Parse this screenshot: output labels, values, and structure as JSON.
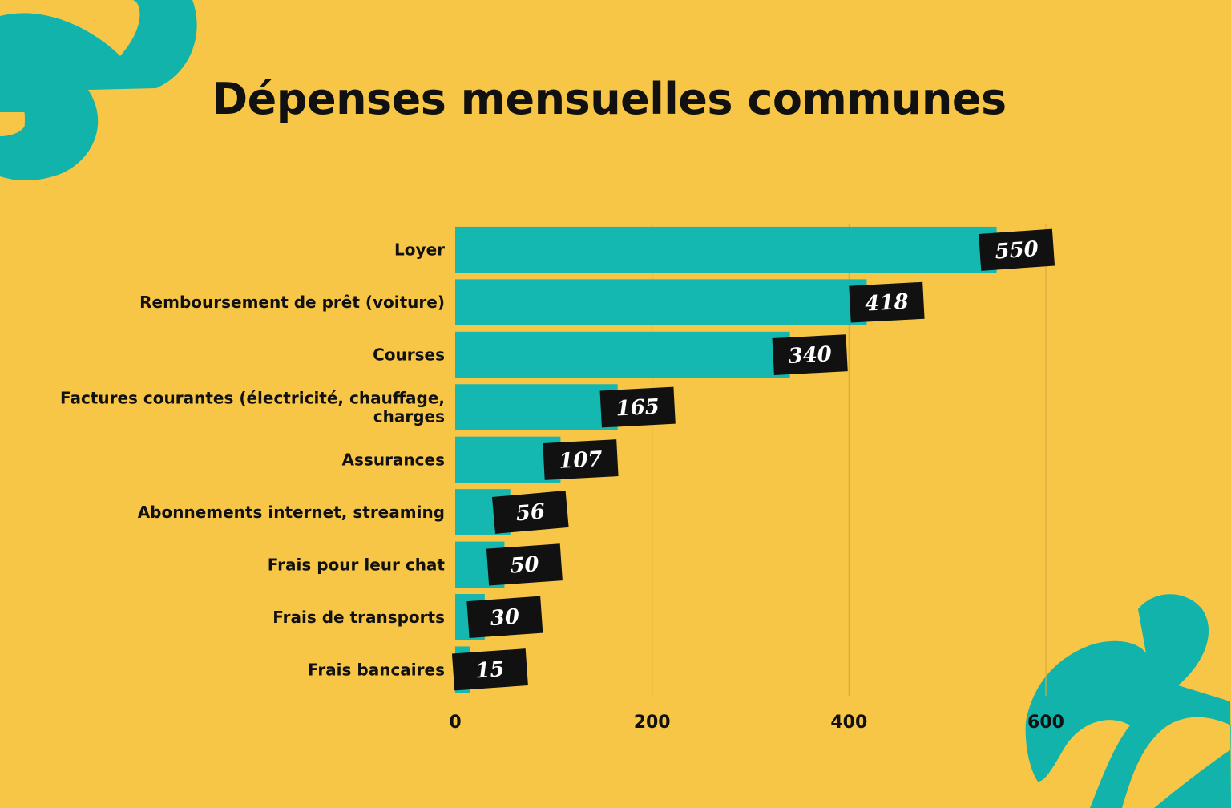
{
  "colors": {
    "background": "#f7c647",
    "bar": "#14b8b0",
    "decoration": "#12b3aa",
    "label_box": "#111111",
    "label_text": "#ffffff",
    "grid": "#d9ab3c"
  },
  "chart_data": {
    "type": "bar",
    "orientation": "horizontal",
    "title": "Dépenses mensuelles communes",
    "xlabel": "",
    "ylabel": "",
    "categories": [
      [
        "Loyer"
      ],
      [
        "Remboursement de prêt (voiture)"
      ],
      [
        "Courses"
      ],
      [
        "Factures courantes (électricité, chauffage,",
        "charges"
      ],
      [
        "Assurances"
      ],
      [
        "Abonnements internet, streaming"
      ],
      [
        "Frais pour leur chat"
      ],
      [
        "Frais de transports"
      ],
      [
        "Frais bancaires"
      ]
    ],
    "values": [
      550,
      418,
      340,
      165,
      107,
      56,
      50,
      30,
      15
    ],
    "xlim": [
      0,
      600
    ],
    "xticks": [
      0,
      200,
      400,
      600
    ],
    "grid": true,
    "legend": "none"
  }
}
